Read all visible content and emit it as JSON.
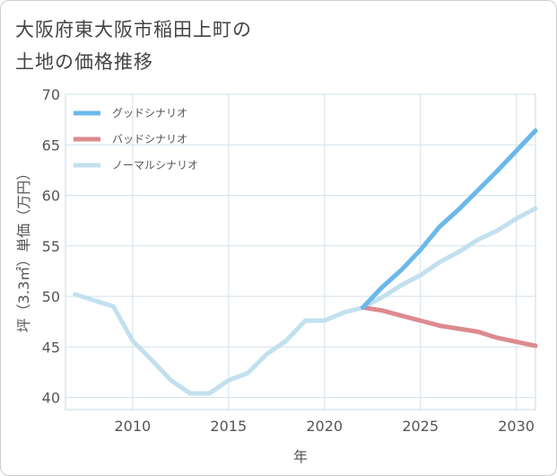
{
  "chart_data": {
    "type": "line",
    "title": [
      "大阪府東大阪市稲田上町の",
      "土地の価格推移"
    ],
    "xlabel": "年",
    "ylabel": "坪（3.3㎡）単価（万円）",
    "xlim": [
      2006.5,
      2031
    ],
    "ylim": [
      38.8,
      70
    ],
    "xticks": [
      2010,
      2015,
      2020,
      2025,
      2030
    ],
    "yticks": [
      40,
      45,
      50,
      55,
      60,
      65,
      70
    ],
    "grid": true,
    "legend_position": "top-left",
    "series": [
      {
        "name": "グッドシナリオ",
        "color": "#6bb8ea",
        "width": 5,
        "x": [
          2022,
          2023,
          2024,
          2025,
          2026,
          2027,
          2028,
          2029,
          2030,
          2031
        ],
        "values": [
          48.9,
          50.9,
          52.6,
          54.6,
          56.9,
          58.6,
          60.5,
          62.4,
          64.4,
          66.4
        ]
      },
      {
        "name": "バッドシナリオ",
        "color": "#dd8a90",
        "width": 5,
        "x": [
          2022,
          2023,
          2024,
          2025,
          2026,
          2027,
          2028,
          2029,
          2030,
          2031
        ],
        "values": [
          48.9,
          48.6,
          48.1,
          47.6,
          47.1,
          46.8,
          46.5,
          45.9,
          45.5,
          45.1
        ]
      },
      {
        "name": "ノーマルシナリオ",
        "color": "#c2e0ee",
        "width": 5,
        "x": [
          2007,
          2008,
          2009,
          2010,
          2011,
          2012,
          2013,
          2014,
          2015,
          2016,
          2017,
          2018,
          2019,
          2020,
          2021,
          2022,
          2023,
          2024,
          2025,
          2026,
          2027,
          2028,
          2029,
          2030,
          2031
        ],
        "values": [
          50.2,
          49.6,
          49.0,
          45.6,
          43.7,
          41.7,
          40.4,
          40.4,
          41.7,
          42.4,
          44.3,
          45.6,
          47.6,
          47.6,
          48.4,
          48.9,
          49.9,
          51.1,
          52.1,
          53.4,
          54.4,
          55.6,
          56.5,
          57.7,
          58.7
        ]
      }
    ]
  }
}
